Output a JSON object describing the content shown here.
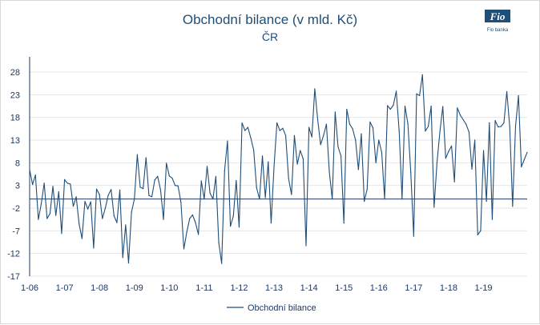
{
  "brand": {
    "logo_label": "Fio banka",
    "logo_mark": "Fio",
    "color": "#1f4e79"
  },
  "chart_data": {
    "type": "line",
    "title": "Obchodní bilance (v mld. Kč)",
    "subtitle": "ČR",
    "xlabel": "",
    "ylabel": "",
    "ylim": [
      -17,
      31
    ],
    "y_ticks": [
      28,
      23,
      18,
      13,
      8,
      3,
      -2,
      -7,
      -12,
      -17
    ],
    "x_tick_labels": [
      "1-06",
      "1-07",
      "1-08",
      "1-09",
      "1-10",
      "1-11",
      "1-12",
      "1-13",
      "1-14",
      "1-15",
      "1-16",
      "1-17",
      "1-18",
      "1-19"
    ],
    "grid": true,
    "legend": "bottom",
    "line_color": "#1f4e79",
    "zero_line": 0,
    "series": [
      {
        "name": "Obchodní bilance",
        "start": "2006-01",
        "values": [
          6.5,
          3.2,
          5.3,
          -4.5,
          -1.0,
          3.5,
          -4.3,
          -3.2,
          2.8,
          -3.6,
          1.6,
          -7.6,
          4.3,
          3.5,
          3.3,
          -1.6,
          0.5,
          -5.5,
          -8.7,
          -0.5,
          -2.2,
          -0.6,
          -10.8,
          2.2,
          1.0,
          -4.3,
          -2.0,
          0.8,
          2.1,
          -3.7,
          -5.2,
          2.0,
          -12.9,
          -5.7,
          -14.1,
          -2.9,
          0.0,
          9.8,
          2.6,
          2.3,
          9.1,
          0.8,
          0.5,
          4.2,
          5.0,
          2.0,
          -4.5,
          7.9,
          5.1,
          4.6,
          3.0,
          2.9,
          -0.7,
          -11.0,
          -7.3,
          -4.3,
          -3.5,
          -5.2,
          -7.8,
          4.0,
          0.0,
          7.2,
          1.3,
          0.0,
          5.0,
          -9.6,
          -14.2,
          6.3,
          12.8,
          -6.0,
          -3.8,
          4.1,
          -6.2,
          16.8,
          15.1,
          15.8,
          13.5,
          10.8,
          2.5,
          0.0,
          9.5,
          0.3,
          8.2,
          -5.3,
          7.2,
          16.8,
          15.1,
          15.6,
          14.0,
          4.5,
          1.0,
          14.0,
          7.7,
          10.7,
          8.9,
          -10.3,
          15.8,
          13.7,
          24.3,
          17.5,
          12.0,
          14.0,
          16.5,
          6.0,
          0.0,
          19.2,
          11.5,
          9.5,
          -5.3,
          19.8,
          16.5,
          15.5,
          13.0,
          6.5,
          14.4,
          -0.5,
          2.2,
          17.0,
          15.7,
          8.0,
          13.0,
          10.3,
          0.0,
          20.6,
          19.8,
          20.7,
          23.8,
          15.0,
          0.0,
          20.5,
          16.6,
          5.8,
          -8.2,
          23.2,
          22.8,
          27.4,
          15.0,
          16.0,
          20.5,
          -1.8,
          8.0,
          14.8,
          20.4,
          9.0,
          10.5,
          11.7,
          3.8,
          20.1,
          18.5,
          17.5,
          16.5,
          14.8,
          6.6,
          13.0,
          -7.9,
          -7.0,
          10.7,
          -0.5,
          16.8,
          -4.5,
          17.3,
          15.9,
          16.0,
          16.8,
          23.7,
          16.0,
          -1.6,
          16.0,
          22.8,
          7.1,
          8.7,
          10.3
        ]
      }
    ]
  }
}
